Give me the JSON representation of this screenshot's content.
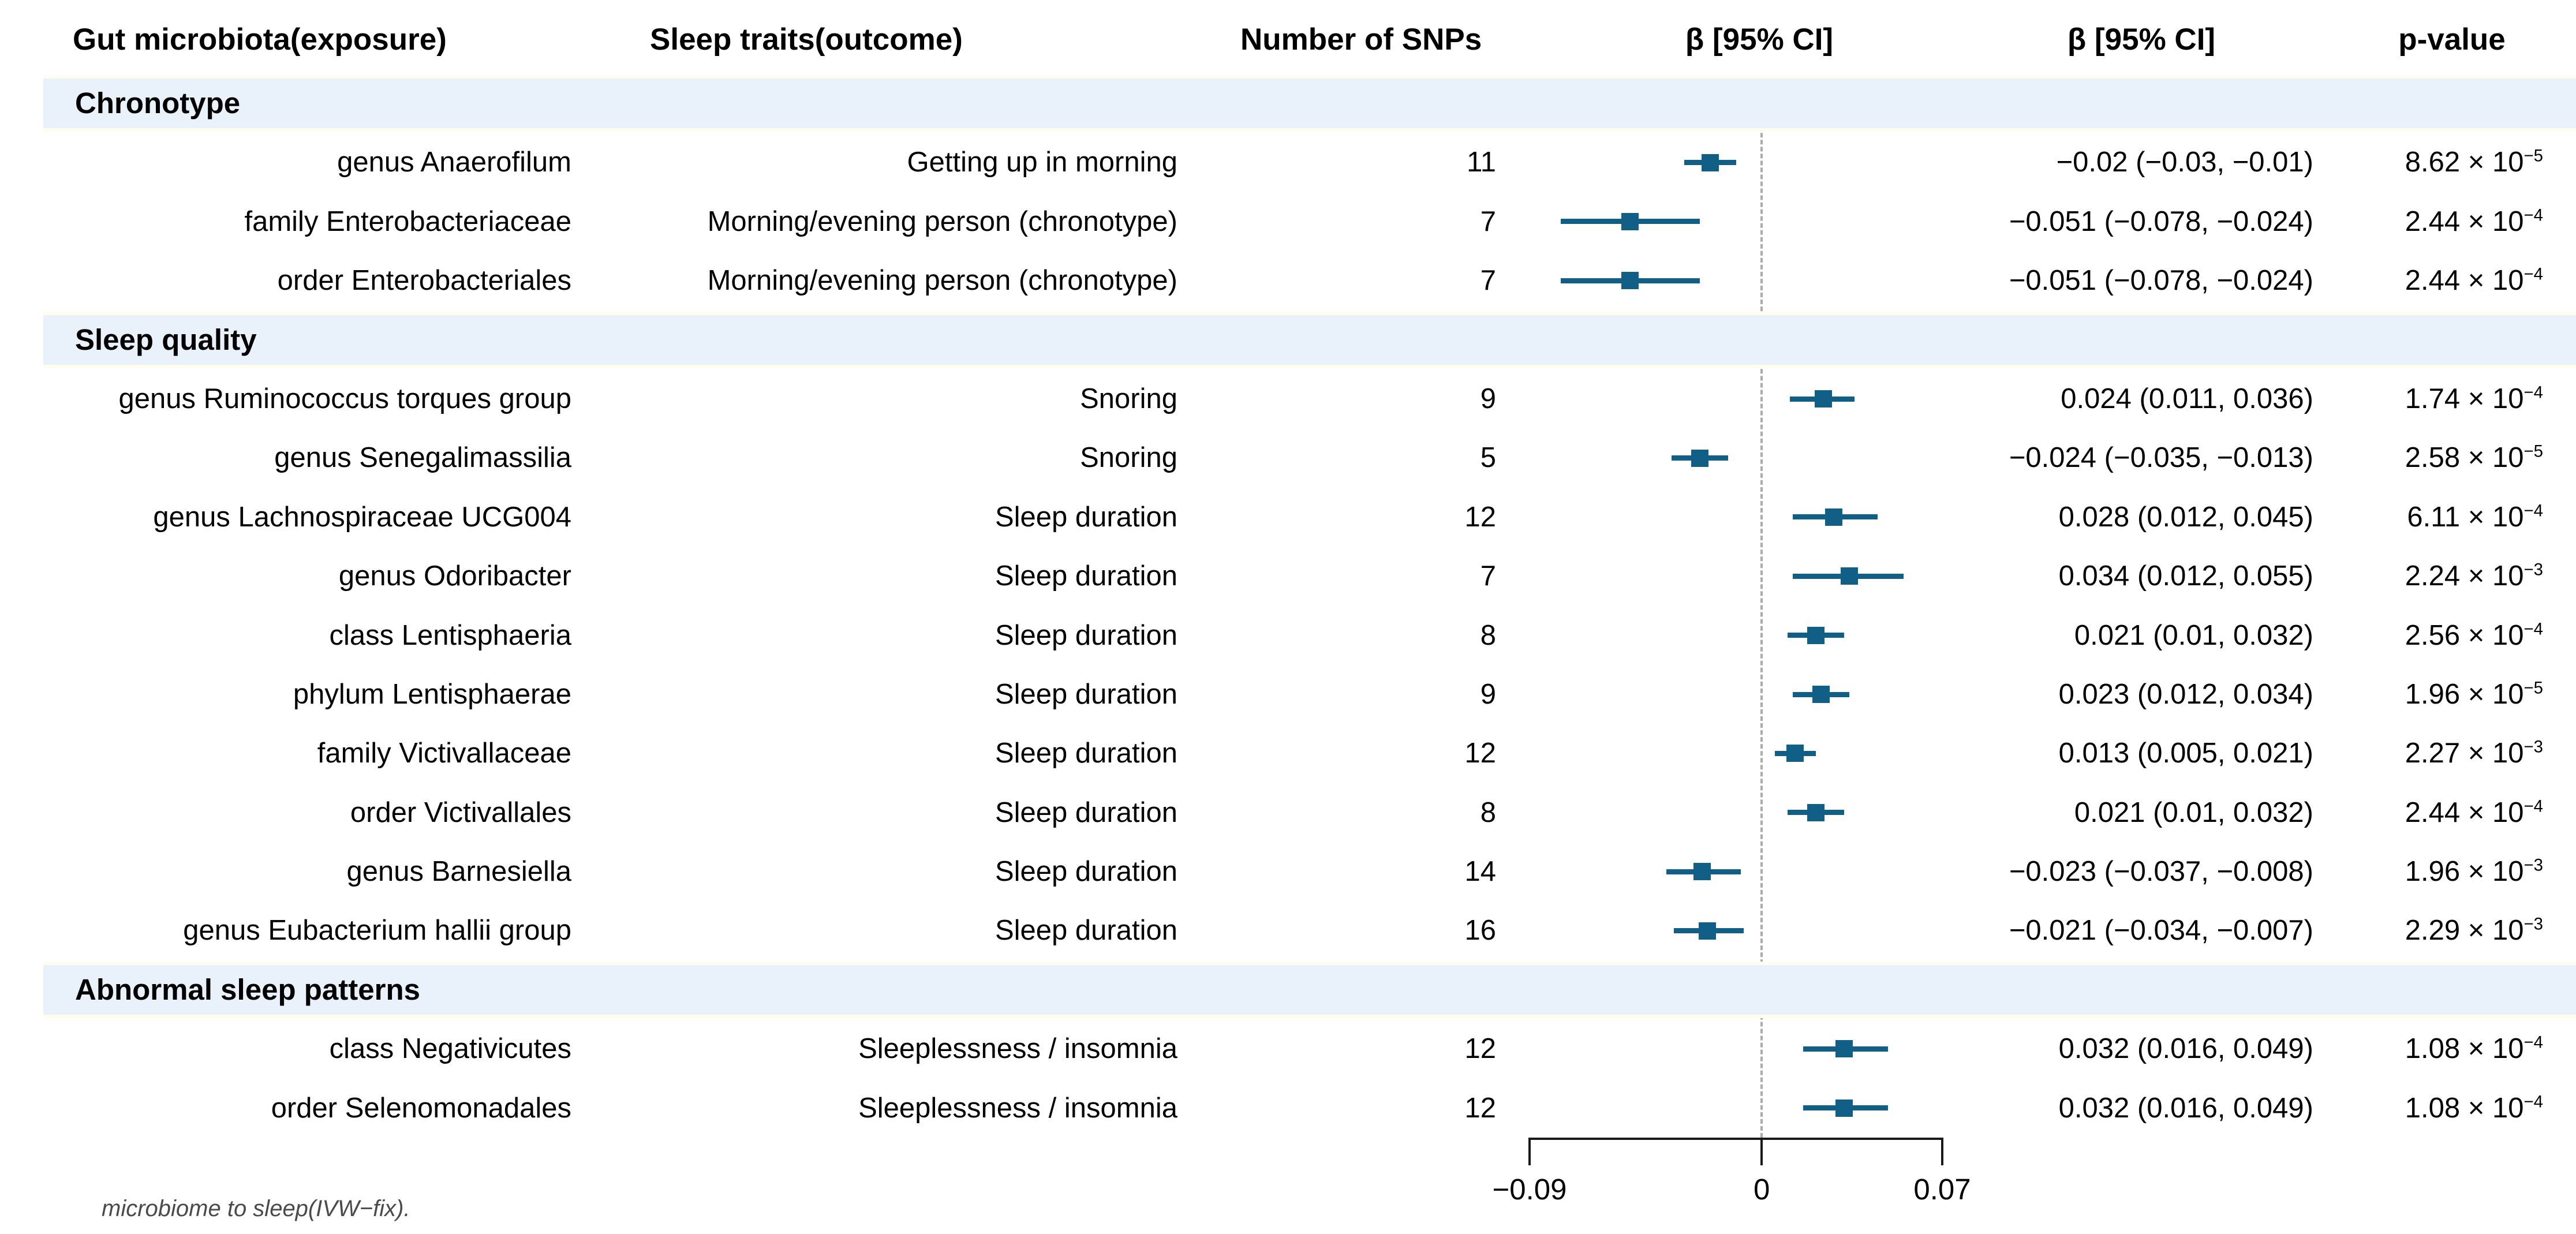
{
  "header": {
    "col_exposure": "Gut microbiota(exposure)",
    "col_outcome": "Sleep traits(outcome)",
    "col_snps": "Number of SNPs",
    "col_plot": "β [95% CI]",
    "col_beta": "β [95% CI]",
    "col_p": "p-value"
  },
  "footnote": "microbiome to sleep(IVW−fix).",
  "colors": {
    "marker": "#115E87",
    "section_band": "#E9F2FA",
    "band_edge": "#FFFDF0",
    "dashed_line": "#ABABAB",
    "axis": "#1a1a1a"
  },
  "chart_data": {
    "type": "forest",
    "xlabel": "β",
    "xlim": [
      -0.09,
      0.07
    ],
    "zero_line": 0,
    "axis_ticks": [
      {
        "value": -0.09,
        "label": "−0.09"
      },
      {
        "value": 0,
        "label": "0"
      },
      {
        "value": 0.07,
        "label": "0.07"
      }
    ],
    "rows": [
      {
        "type": "section",
        "label": "Chronotype"
      },
      {
        "type": "data",
        "exposure": "genus Anaerofilum",
        "outcome": "Getting up in morning",
        "snps": "11",
        "beta": -0.02,
        "ci_lo": -0.03,
        "ci_hi": -0.01,
        "beta_text": "−0.02 (−0.03, −0.01)",
        "p_mant": "8.62 × 10",
        "p_exp": "−5"
      },
      {
        "type": "data",
        "exposure": "family Enterobacteriaceae",
        "outcome": "Morning/evening person (chronotype)",
        "snps": "7",
        "beta": -0.051,
        "ci_lo": -0.078,
        "ci_hi": -0.024,
        "beta_text": "−0.051 (−0.078, −0.024)",
        "p_mant": "2.44 × 10",
        "p_exp": "−4"
      },
      {
        "type": "data",
        "exposure": "order Enterobacteriales",
        "outcome": "Morning/evening person (chronotype)",
        "snps": "7",
        "beta": -0.051,
        "ci_lo": -0.078,
        "ci_hi": -0.024,
        "beta_text": "−0.051 (−0.078, −0.024)",
        "p_mant": "2.44 × 10",
        "p_exp": "−4"
      },
      {
        "type": "section",
        "label": "Sleep quality"
      },
      {
        "type": "data",
        "exposure": "genus Ruminococcus torques group",
        "outcome": "Snoring",
        "snps": "9",
        "beta": 0.024,
        "ci_lo": 0.011,
        "ci_hi": 0.036,
        "beta_text": "0.024 (0.011, 0.036)",
        "p_mant": "1.74 × 10",
        "p_exp": "−4"
      },
      {
        "type": "data",
        "exposure": "genus Senegalimassilia",
        "outcome": "Snoring",
        "snps": "5",
        "beta": -0.024,
        "ci_lo": -0.035,
        "ci_hi": -0.013,
        "beta_text": "−0.024 (−0.035, −0.013)",
        "p_mant": "2.58 × 10",
        "p_exp": "−5"
      },
      {
        "type": "data",
        "exposure": "genus Lachnospiraceae UCG004",
        "outcome": "Sleep duration",
        "snps": "12",
        "beta": 0.028,
        "ci_lo": 0.012,
        "ci_hi": 0.045,
        "beta_text": "0.028 (0.012, 0.045)",
        "p_mant": "6.11 × 10",
        "p_exp": "−4"
      },
      {
        "type": "data",
        "exposure": "genus Odoribacter",
        "outcome": "Sleep duration",
        "snps": "7",
        "beta": 0.034,
        "ci_lo": 0.012,
        "ci_hi": 0.055,
        "beta_text": "0.034 (0.012, 0.055)",
        "p_mant": "2.24 × 10",
        "p_exp": "−3"
      },
      {
        "type": "data",
        "exposure": "class Lentisphaeria",
        "outcome": "Sleep duration",
        "snps": "8",
        "beta": 0.021,
        "ci_lo": 0.01,
        "ci_hi": 0.032,
        "beta_text": "0.021 (0.01, 0.032)",
        "p_mant": "2.56 × 10",
        "p_exp": "−4"
      },
      {
        "type": "data",
        "exposure": "phylum Lentisphaerae",
        "outcome": "Sleep duration",
        "snps": "9",
        "beta": 0.023,
        "ci_lo": 0.012,
        "ci_hi": 0.034,
        "beta_text": "0.023 (0.012, 0.034)",
        "p_mant": "1.96 × 10",
        "p_exp": "−5"
      },
      {
        "type": "data",
        "exposure": "family Victivallaceae",
        "outcome": "Sleep duration",
        "snps": "12",
        "beta": 0.013,
        "ci_lo": 0.005,
        "ci_hi": 0.021,
        "beta_text": "0.013 (0.005, 0.021)",
        "p_mant": "2.27 × 10",
        "p_exp": "−3"
      },
      {
        "type": "data",
        "exposure": "order Victivallales",
        "outcome": "Sleep duration",
        "snps": "8",
        "beta": 0.021,
        "ci_lo": 0.01,
        "ci_hi": 0.032,
        "beta_text": "0.021 (0.01, 0.032)",
        "p_mant": "2.44 × 10",
        "p_exp": "−4"
      },
      {
        "type": "data",
        "exposure": "genus Barnesiella",
        "outcome": "Sleep duration",
        "snps": "14",
        "beta": -0.023,
        "ci_lo": -0.037,
        "ci_hi": -0.008,
        "beta_text": "−0.023 (−0.037, −0.008)",
        "p_mant": "1.96 × 10",
        "p_exp": "−3"
      },
      {
        "type": "data",
        "exposure": "genus Eubacterium hallii group",
        "outcome": "Sleep duration",
        "snps": "16",
        "beta": -0.021,
        "ci_lo": -0.034,
        "ci_hi": -0.007,
        "beta_text": "−0.021 (−0.034, −0.007)",
        "p_mant": "2.29 × 10",
        "p_exp": "−3"
      },
      {
        "type": "section",
        "label": "Abnormal sleep patterns"
      },
      {
        "type": "data",
        "exposure": "class Negativicutes",
        "outcome": "Sleeplessness / insomnia",
        "snps": "12",
        "beta": 0.032,
        "ci_lo": 0.016,
        "ci_hi": 0.049,
        "beta_text": "0.032 (0.016, 0.049)",
        "p_mant": "1.08 × 10",
        "p_exp": "−4"
      },
      {
        "type": "data",
        "exposure": "order Selenomonadales",
        "outcome": "Sleeplessness / insomnia",
        "snps": "12",
        "beta": 0.032,
        "ci_lo": 0.016,
        "ci_hi": 0.049,
        "beta_text": "0.032 (0.016, 0.049)",
        "p_mant": "1.08 × 10",
        "p_exp": "−4"
      }
    ]
  }
}
